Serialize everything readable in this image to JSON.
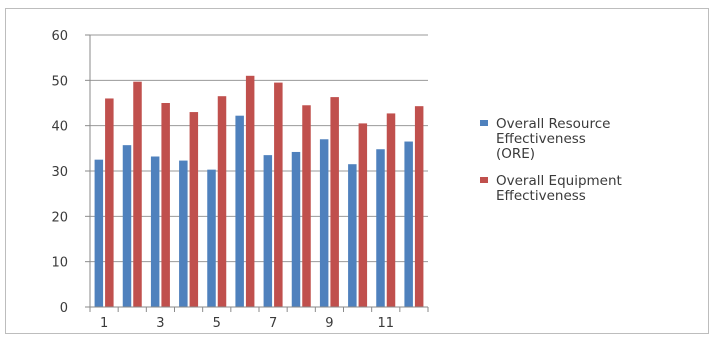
{
  "chart_data": {
    "type": "bar",
    "categories": [
      "1",
      "2",
      "3",
      "4",
      "5",
      "6",
      "7",
      "8",
      "9",
      "10",
      "11",
      "12"
    ],
    "x_tick_labels": [
      "1",
      "",
      "3",
      "",
      "5",
      "",
      "7",
      "",
      "9",
      "",
      "11",
      ""
    ],
    "y_ticks": [
      "0",
      "10",
      "20",
      "30",
      "40",
      "50",
      "60"
    ],
    "ylim": [
      0,
      60
    ],
    "grid": true,
    "legend_position": "right",
    "series": [
      {
        "name": "Overall Resource Effectiveness (ORE)",
        "legend_lines": [
          "Overall Resource",
          "Effectiveness",
          "(ORE)"
        ],
        "color": "#4f81bd",
        "values": [
          32.5,
          35.7,
          33.2,
          32.3,
          30.3,
          42.2,
          33.5,
          34.2,
          37.0,
          31.5,
          34.8,
          36.5
        ]
      },
      {
        "name": "Overall Equipment Effectiveness",
        "legend_lines": [
          "Overall Equipment",
          "Effectiveness"
        ],
        "color": "#c0504d",
        "values": [
          46.0,
          49.7,
          45.0,
          43.0,
          46.5,
          51.0,
          49.5,
          44.5,
          46.3,
          40.5,
          42.7,
          44.3
        ]
      }
    ]
  }
}
